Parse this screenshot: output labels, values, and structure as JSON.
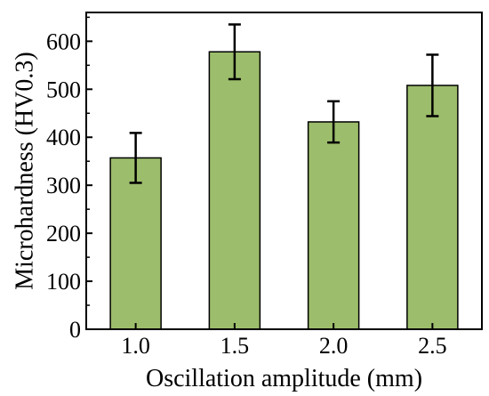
{
  "chart_data": {
    "type": "bar",
    "title": "",
    "xlabel": "Oscillation amplitude (mm)",
    "ylabel": "Microhardness (HV0.3)",
    "categories": [
      "1.0",
      "1.5",
      "2.0",
      "2.5"
    ],
    "values": [
      357,
      578,
      432,
      508
    ],
    "errors": [
      52,
      57,
      43,
      64
    ],
    "ylim": [
      0,
      660
    ],
    "yticks": [
      "0",
      "100",
      "200",
      "300",
      "400",
      "500",
      "600"
    ],
    "bar_color": "#9cbd6b",
    "bar_edge_color": "#000000",
    "grid": false,
    "legend": "none"
  }
}
